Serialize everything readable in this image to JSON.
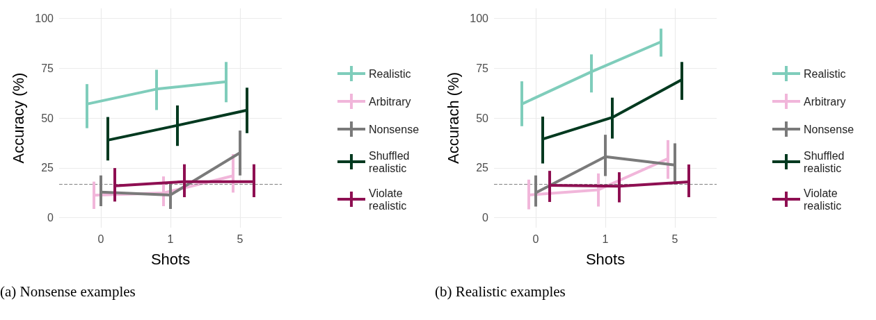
{
  "chart_data": [
    {
      "type": "line",
      "xlabel": "Shots",
      "ylabel": "Accuracy (%)",
      "categories": [
        "0",
        "1",
        "5"
      ],
      "ylim": [
        -5,
        105
      ],
      "yticks": [
        0,
        25,
        50,
        75,
        100
      ],
      "grid": true,
      "legend": "right",
      "marker": "none",
      "line_style": "solid",
      "annotations": [
        "(a) Nonsense examples"
      ],
      "ref_lines": [
        {
          "axis": "y",
          "value": 16.7,
          "color": "#7f7f7f",
          "line_style": "dashed"
        }
      ],
      "series": [
        {
          "name": "Realistic",
          "color": "#7fcdbb",
          "values": [
            57.0,
            64.5,
            68.2
          ],
          "errors": [
            [
              44.9,
              67.0
            ],
            [
              54.0,
              74.2
            ],
            [
              57.9,
              78.1
            ]
          ]
        },
        {
          "name": "Arbitrary",
          "color": "#f1b6da",
          "values": [
            11.3,
            12.4,
            21.0
          ],
          "errors": [
            [
              4.4,
              18.1
            ],
            [
              5.8,
              20.7
            ],
            [
              12.6,
              31.9
            ]
          ]
        },
        {
          "name": "Nonsense",
          "color": "#7a7a7a",
          "values": [
            12.8,
            11.4,
            32.6
          ],
          "errors": [
            [
              5.8,
              21.2
            ],
            [
              4.4,
              18.2
            ],
            [
              21.2,
              43.7
            ]
          ]
        },
        {
          "name": "Shuffled realistic",
          "color": "#00391f",
          "values": [
            38.9,
            46.3,
            53.9
          ],
          "errors": [
            [
              28.7,
              50.5
            ],
            [
              36.0,
              56.3
            ],
            [
              42.4,
              65.2
            ]
          ]
        },
        {
          "name": "Violate realistic",
          "color": "#8e0f52",
          "values": [
            16.0,
            18.1,
            18.1
          ],
          "errors": [
            [
              8.1,
              24.9
            ],
            [
              10.3,
              26.8
            ],
            [
              10.3,
              26.8
            ]
          ]
        }
      ]
    },
    {
      "type": "line",
      "xlabel": "Shots",
      "ylabel": "Accurach (%)",
      "categories": [
        "0",
        "1",
        "5"
      ],
      "ylim": [
        -5,
        105
      ],
      "yticks": [
        0,
        25,
        50,
        75,
        100
      ],
      "grid": true,
      "legend": "right",
      "marker": "none",
      "line_style": "solid",
      "annotations": [
        "(b) Realistic examples"
      ],
      "ref_lines": [
        {
          "axis": "y",
          "value": 16.7,
          "color": "#7f7f7f",
          "line_style": "dashed"
        }
      ],
      "series": [
        {
          "name": "Realistic",
          "color": "#7fcdbb",
          "values": [
            57.0,
            73.2,
            88.2
          ],
          "errors": [
            [
              45.9,
              68.4
            ],
            [
              62.8,
              81.9
            ],
            [
              80.8,
              94.8
            ]
          ]
        },
        {
          "name": "Arbitrary",
          "color": "#f1b6da",
          "values": [
            11.4,
            14.0,
            29.6
          ],
          "errors": [
            [
              4.2,
              19.1
            ],
            [
              5.6,
              22.2
            ],
            [
              19.5,
              38.9
            ]
          ]
        },
        {
          "name": "Nonsense",
          "color": "#7a7a7a",
          "values": [
            12.5,
            30.6,
            26.4
          ],
          "errors": [
            [
              5.6,
              21.2
            ],
            [
              20.9,
              41.6
            ],
            [
              16.7,
              37.3
            ]
          ]
        },
        {
          "name": "Shuffled realistic",
          "color": "#00391f",
          "values": [
            39.4,
            50.3,
            69.2
          ],
          "errors": [
            [
              27.2,
              50.7
            ],
            [
              39.7,
              60.2
            ],
            [
              59.1,
              78.1
            ]
          ]
        },
        {
          "name": "Violate realistic",
          "color": "#8e0f52",
          "values": [
            16.2,
            15.8,
            18.0
          ],
          "errors": [
            [
              7.9,
              23.5
            ],
            [
              7.7,
              22.8
            ],
            [
              10.3,
              26.7
            ]
          ]
        }
      ]
    }
  ]
}
